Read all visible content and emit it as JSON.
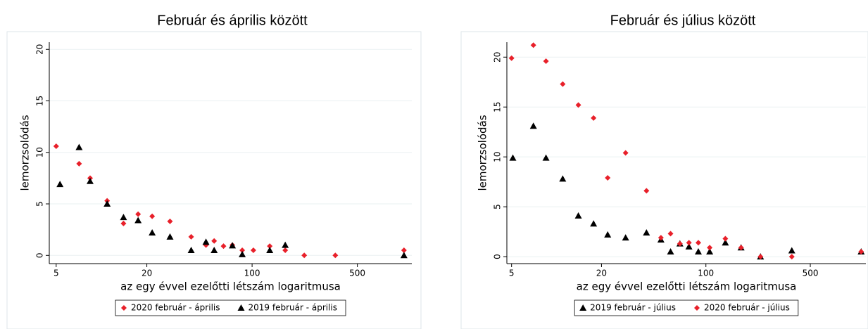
{
  "chart_data": [
    {
      "type": "scatter",
      "title": "Február és április között",
      "x_label": "az egy évvel ezelőtti létszám logaritmusa",
      "y_label": "lemorzsolódás",
      "x_scale": "log",
      "xlim": [
        4.5,
        1150
      ],
      "xticks": [
        5,
        20,
        100,
        500
      ],
      "ylim": [
        -0.8,
        20.7
      ],
      "yticks": [
        0,
        5,
        10,
        15,
        20
      ],
      "grid": true,
      "legend": "bottom",
      "series": [
        {
          "name": "2020 február - április",
          "color": "#e8202a",
          "marker": "diamond",
          "x": [
            5,
            7.1,
            8.4,
            10.9,
            14,
            17.5,
            21.7,
            28.5,
            39.4,
            49.4,
            56,
            64.6,
            74,
            86,
            102,
            131,
            166,
            222,
            357,
            1020
          ],
          "values": [
            10.6,
            8.9,
            7.5,
            5.3,
            3.1,
            4.0,
            3.8,
            3.3,
            1.8,
            1.0,
            1.4,
            0.9,
            1.0,
            0.5,
            0.5,
            0.9,
            0.5,
            0,
            0,
            0.5
          ]
        },
        {
          "name": "2019 február - április",
          "color": "#000000",
          "marker": "triangle",
          "x": [
            5.3,
            7.1,
            8.4,
            10.9,
            14,
            17.5,
            21.7,
            28.5,
            39.4,
            49.4,
            56,
            74,
            86,
            131,
            166,
            1020
          ],
          "values": [
            6.9,
            10.5,
            7.2,
            5.0,
            3.7,
            3.4,
            2.2,
            1.8,
            0.5,
            1.3,
            0.5,
            0.95,
            0.1,
            0.5,
            1.0,
            0
          ]
        }
      ]
    },
    {
      "type": "scatter",
      "title": "Február és július között",
      "x_label": "az egy évvel ezelőtti létszám logaritmusa",
      "y_label": "lemorzsolódás",
      "x_scale": "log",
      "xlim": [
        4.65,
        1178
      ],
      "xticks": [
        5,
        20,
        100,
        500
      ],
      "ylim": [
        -0.7,
        21.5
      ],
      "yticks": [
        0,
        5,
        10,
        15,
        20
      ],
      "grid": true,
      "legend": "bottom",
      "series": [
        {
          "name": "2019 február - július",
          "color": "#000000",
          "marker": "triangle",
          "x": [
            5.1,
            7,
            8.5,
            11,
            14,
            17.7,
            22,
            29,
            40,
            50,
            58,
            67,
            77,
            89,
            106,
            135,
            172,
            232,
            376,
            1095
          ],
          "values": [
            9.9,
            13.1,
            9.9,
            7.8,
            4.1,
            3.3,
            2.2,
            1.9,
            2.4,
            1.7,
            0.5,
            1.3,
            1.0,
            0.5,
            0.5,
            1.4,
            0.9,
            0,
            0.6,
            0.5
          ]
        },
        {
          "name": "2020 február - július",
          "color": "#e8202a",
          "marker": "diamond",
          "x": [
            5,
            7,
            8.5,
            11,
            14,
            17.7,
            22,
            29,
            40,
            50,
            58,
            67,
            77,
            89,
            106,
            135,
            172,
            232,
            376,
            1095
          ],
          "values": [
            19.9,
            21.2,
            19.6,
            17.3,
            15.2,
            13.9,
            7.9,
            10.4,
            6.6,
            1.9,
            2.3,
            1.3,
            1.4,
            1.4,
            0.9,
            1.8,
            0.9,
            0,
            0,
            0.5
          ]
        }
      ]
    }
  ]
}
